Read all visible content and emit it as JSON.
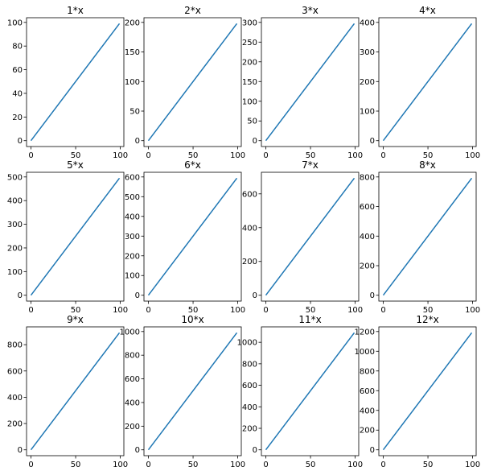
{
  "figure": {
    "background": "#ffffff",
    "line_color": "#1f77b4"
  },
  "chart_data": [
    {
      "type": "line",
      "title": "1*x",
      "x_range": [
        0,
        99
      ],
      "slope": 1,
      "xticks": [
        0,
        50,
        100
      ],
      "yticks": [
        0,
        20,
        40,
        60,
        80,
        100
      ]
    },
    {
      "type": "line",
      "title": "2*x",
      "x_range": [
        0,
        99
      ],
      "slope": 2,
      "xticks": [
        0,
        50,
        100
      ],
      "yticks": [
        0,
        50,
        100,
        150,
        200
      ]
    },
    {
      "type": "line",
      "title": "3*x",
      "x_range": [
        0,
        99
      ],
      "slope": 3,
      "xticks": [
        0,
        50,
        100
      ],
      "yticks": [
        0,
        50,
        100,
        150,
        200,
        250,
        300
      ]
    },
    {
      "type": "line",
      "title": "4*x",
      "x_range": [
        0,
        99
      ],
      "slope": 4,
      "xticks": [
        0,
        50,
        100
      ],
      "yticks": [
        0,
        100,
        200,
        300,
        400
      ]
    },
    {
      "type": "line",
      "title": "5*x",
      "x_range": [
        0,
        99
      ],
      "slope": 5,
      "xticks": [
        0,
        50,
        100
      ],
      "yticks": [
        0,
        100,
        200,
        300,
        400,
        500
      ]
    },
    {
      "type": "line",
      "title": "6*x",
      "x_range": [
        0,
        99
      ],
      "slope": 6,
      "xticks": [
        0,
        50,
        100
      ],
      "yticks": [
        0,
        100,
        200,
        300,
        400,
        500,
        600
      ]
    },
    {
      "type": "line",
      "title": "7*x",
      "x_range": [
        0,
        99
      ],
      "slope": 7,
      "xticks": [
        0,
        50,
        100
      ],
      "yticks": [
        0,
        200,
        400,
        600
      ]
    },
    {
      "type": "line",
      "title": "8*x",
      "x_range": [
        0,
        99
      ],
      "slope": 8,
      "xticks": [
        0,
        50,
        100
      ],
      "yticks": [
        0,
        200,
        400,
        600,
        800
      ]
    },
    {
      "type": "line",
      "title": "9*x",
      "x_range": [
        0,
        99
      ],
      "slope": 9,
      "xticks": [
        0,
        50,
        100
      ],
      "yticks": [
        0,
        200,
        400,
        600,
        800
      ]
    },
    {
      "type": "line",
      "title": "10*x",
      "x_range": [
        0,
        99
      ],
      "slope": 10,
      "xticks": [
        0,
        50,
        100
      ],
      "yticks": [
        0,
        200,
        400,
        600,
        800,
        1000
      ]
    },
    {
      "type": "line",
      "title": "11*x",
      "x_range": [
        0,
        99
      ],
      "slope": 11,
      "xticks": [
        0,
        50,
        100
      ],
      "yticks": [
        0,
        200,
        400,
        600,
        800,
        1000
      ]
    },
    {
      "type": "line",
      "title": "12*x",
      "x_range": [
        0,
        99
      ],
      "slope": 12,
      "xticks": [
        0,
        50,
        100
      ],
      "yticks": [
        0,
        200,
        400,
        600,
        800,
        1000,
        1200
      ]
    }
  ]
}
